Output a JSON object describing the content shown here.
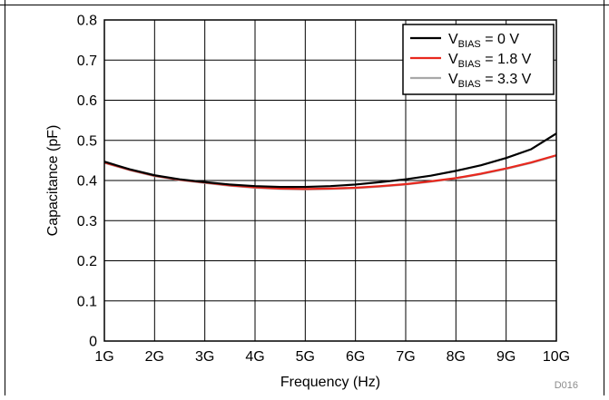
{
  "chart_data": {
    "type": "line",
    "title": "",
    "xlabel": "Frequency (Hz)",
    "ylabel": "Capacitance (pF)",
    "xlim": [
      1,
      10
    ],
    "ylim": [
      0,
      0.8
    ],
    "x_ticks": [
      {
        "value": 1,
        "label": "1G"
      },
      {
        "value": 2,
        "label": "2G"
      },
      {
        "value": 3,
        "label": "3G"
      },
      {
        "value": 4,
        "label": "4G"
      },
      {
        "value": 5,
        "label": "5G"
      },
      {
        "value": 6,
        "label": "6G"
      },
      {
        "value": 7,
        "label": "7G"
      },
      {
        "value": 8,
        "label": "8G"
      },
      {
        "value": 9,
        "label": "9G"
      },
      {
        "value": 10,
        "label": "10G"
      }
    ],
    "y_ticks": [
      {
        "value": 0,
        "label": "0"
      },
      {
        "value": 0.1,
        "label": "0.1"
      },
      {
        "value": 0.2,
        "label": "0.2"
      },
      {
        "value": 0.3,
        "label": "0.3"
      },
      {
        "value": 0.4,
        "label": "0.4"
      },
      {
        "value": 0.5,
        "label": "0.5"
      },
      {
        "value": 0.6,
        "label": "0.6"
      },
      {
        "value": 0.7,
        "label": "0.7"
      },
      {
        "value": 0.8,
        "label": "0.8"
      }
    ],
    "grid": true,
    "legend_position": "top-right",
    "series": [
      {
        "name": "VBIAS = 0 V",
        "name_parts": {
          "main": "V",
          "sub": "BIAS",
          "rest": " = 0 V"
        },
        "color": "#000000",
        "x": [
          1,
          1.5,
          2,
          2.5,
          3,
          3.5,
          4,
          4.5,
          5,
          5.5,
          6,
          6.5,
          7,
          7.5,
          8,
          8.5,
          9,
          9.5,
          10
        ],
        "y": [
          0.447,
          0.428,
          0.413,
          0.403,
          0.396,
          0.39,
          0.386,
          0.384,
          0.384,
          0.386,
          0.39,
          0.396,
          0.403,
          0.412,
          0.424,
          0.438,
          0.456,
          0.478,
          0.517
        ]
      },
      {
        "name": "VBIAS = 1.8 V",
        "name_parts": {
          "main": "V",
          "sub": "BIAS",
          "rest": " = 1.8 V"
        },
        "color": "#e8281e",
        "x": [
          1,
          1.5,
          2,
          2.5,
          3,
          3.5,
          4,
          4.5,
          5,
          5.5,
          6,
          6.5,
          7,
          7.5,
          8,
          8.5,
          9,
          9.5,
          10
        ],
        "y": [
          0.445,
          0.427,
          0.412,
          0.402,
          0.395,
          0.388,
          0.383,
          0.38,
          0.379,
          0.38,
          0.382,
          0.386,
          0.391,
          0.398,
          0.406,
          0.417,
          0.43,
          0.445,
          0.463
        ]
      },
      {
        "name": "VBIAS = 3.3 V",
        "name_parts": {
          "main": "V",
          "sub": "BIAS",
          "rest": " = 3.3 V"
        },
        "color": "#a8a8a8",
        "x": [
          1,
          1.5,
          2,
          2.5,
          3,
          3.5,
          4,
          4.5,
          5,
          5.5,
          6,
          6.5,
          7,
          7.5,
          8,
          8.5,
          9,
          9.5,
          10
        ],
        "y": [
          0.444,
          0.426,
          0.411,
          0.401,
          0.394,
          0.387,
          0.382,
          0.379,
          0.378,
          0.379,
          0.381,
          0.385,
          0.39,
          0.397,
          0.405,
          0.416,
          0.429,
          0.444,
          0.462
        ]
      }
    ],
    "annotations": [
      "D016"
    ]
  }
}
